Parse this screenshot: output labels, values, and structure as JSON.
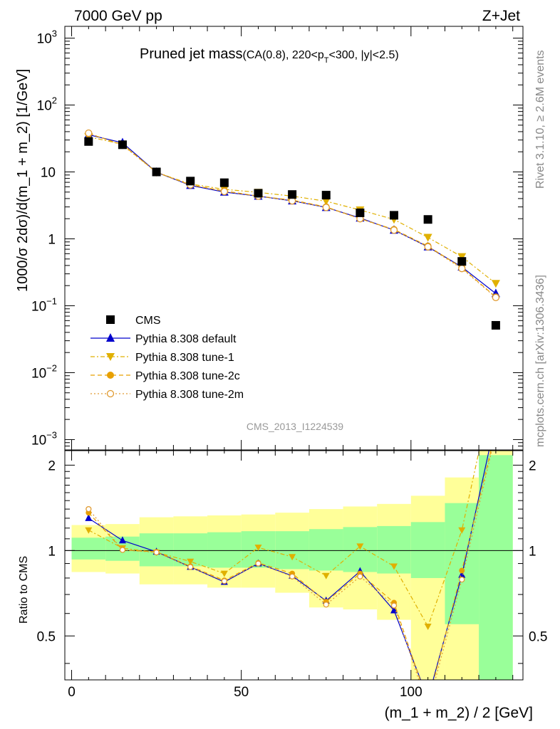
{
  "header": {
    "left": "7000 GeV pp",
    "right": "Z+Jet"
  },
  "side_labels": {
    "rivet": "Rivet 3.1.10, ≥ 2.6M events",
    "mcplots": "mcplots.cern.ch [arXiv:1306.3436]"
  },
  "chart_data": {
    "type": "scatter",
    "title_main": "Pruned jet mass",
    "title_detail": "(CA(0.8), 220<p",
    "title_detail_sub": "T",
    "title_detail_rest": "<300, |y|<2.5)",
    "analysis_id": "CMS_2013_I1224539",
    "xlabel": "(m_1 + m_2) / 2 [GeV]",
    "ylabel_main": "1000/σ 2dσ)/d(m_1 + m_2) [1/GeV]",
    "ylabel_ratio": "Ratio to CMS",
    "x_range": [
      -2,
      133
    ],
    "main_y_log": true,
    "main_y_range": [
      0.0007,
      1500
    ],
    "ratio_y_range": [
      0.35,
      2.25
    ],
    "x_ticks": [
      "0",
      "50",
      "100"
    ],
    "main_y_ticks": [
      {
        "mant": "10",
        "exp": "3"
      },
      {
        "mant": "10",
        "exp": "2"
      },
      {
        "mant": "10",
        "exp": ""
      },
      {
        "mant": "1",
        "exp": ""
      },
      {
        "mant": "10",
        "exp": "−1"
      },
      {
        "mant": "10",
        "exp": "−2"
      },
      {
        "mant": "10",
        "exp": "−3"
      }
    ],
    "ratio_y_ticks": [
      "2",
      "1",
      "0.5"
    ],
    "bins": [
      [
        0,
        10
      ],
      [
        10,
        20
      ],
      [
        20,
        30
      ],
      [
        30,
        40
      ],
      [
        40,
        50
      ],
      [
        50,
        60
      ],
      [
        60,
        70
      ],
      [
        70,
        80
      ],
      [
        80,
        90
      ],
      [
        90,
        100
      ],
      [
        100,
        110
      ],
      [
        110,
        120
      ],
      [
        120,
        130
      ]
    ],
    "x": [
      5,
      15,
      25,
      35,
      45,
      55,
      65,
      75,
      85,
      95,
      105,
      115,
      125
    ],
    "cms": [
      28.5,
      25.5,
      10.0,
      7.3,
      6.9,
      4.8,
      4.6,
      4.5,
      2.45,
      2.25,
      1.95,
      0.46,
      0.051
    ],
    "band_green": [
      [
        0.93,
        1.11
      ],
      [
        0.92,
        1.12
      ],
      [
        0.88,
        1.15
      ],
      [
        0.88,
        1.15
      ],
      [
        0.87,
        1.16
      ],
      [
        0.87,
        1.17
      ],
      [
        0.86,
        1.17
      ],
      [
        0.85,
        1.19
      ],
      [
        0.84,
        1.21
      ],
      [
        0.83,
        1.22
      ],
      [
        0.8,
        1.26
      ],
      [
        0.55,
        1.47
      ],
      [
        0.35,
        2.17
      ]
    ],
    "band_yellow": [
      [
        0.84,
        1.23
      ],
      [
        0.83,
        1.24
      ],
      [
        0.76,
        1.31
      ],
      [
        0.76,
        1.32
      ],
      [
        0.74,
        1.33
      ],
      [
        0.74,
        1.34
      ],
      [
        0.71,
        1.36
      ],
      [
        0.63,
        1.4
      ],
      [
        0.62,
        1.43
      ],
      [
        0.57,
        1.46
      ],
      [
        0.35,
        1.56
      ],
      [
        0.35,
        1.81
      ],
      [
        0.35,
        2.25
      ]
    ],
    "series": [
      {
        "name": "CMS",
        "color": "#000000",
        "marker": "square"
      },
      {
        "name": "Pythia 8.308 default",
        "color": "#0000cc",
        "marker": "triangle-up",
        "dash": "",
        "values": [
          36.0,
          27.3,
          9.9,
          6.3,
          5.0,
          4.35,
          3.7,
          2.95,
          2.05,
          1.35,
          0.76,
          0.38,
          0.152
        ],
        "ratio": [
          1.3,
          1.085,
          0.99,
          0.875,
          0.775,
          0.9,
          0.815,
          0.665,
          0.845,
          0.615,
          0.3,
          0.82,
          2.9
        ]
      },
      {
        "name": "Pythia 8.308 tune-1",
        "color": "#e0b000",
        "marker": "triangle-down",
        "dash": "6,3,2,3",
        "values": [
          33.5,
          26.0,
          9.85,
          6.6,
          5.5,
          4.95,
          4.35,
          3.65,
          2.7,
          1.95,
          1.05,
          0.54,
          0.215
        ],
        "ratio": [
          1.18,
          1.02,
          0.985,
          0.915,
          0.83,
          1.025,
          0.95,
          0.815,
          1.035,
          0.88,
          0.54,
          1.18,
          4.2
        ]
      },
      {
        "name": "Pythia 8.308 tune-2c",
        "color": "#e8a000",
        "marker": "circle",
        "dash": "6,4",
        "values": [
          37.5,
          25.5,
          9.9,
          6.4,
          5.2,
          4.35,
          3.8,
          3.0,
          2.0,
          1.38,
          0.78,
          0.37,
          0.135
        ],
        "ratio": [
          1.36,
          1.005,
          0.99,
          0.88,
          0.785,
          0.905,
          0.83,
          0.66,
          0.83,
          0.655,
          0.29,
          0.85,
          2.65
        ]
      },
      {
        "name": "Pythia 8.308 tune-2m",
        "color": "#e09a30",
        "marker": "circle-open",
        "dash": "2,3",
        "values": [
          38.0,
          25.0,
          9.9,
          6.4,
          5.1,
          4.35,
          3.7,
          2.95,
          2.0,
          1.35,
          0.76,
          0.36,
          0.133
        ],
        "ratio": [
          1.4,
          1.005,
          0.985,
          0.875,
          0.78,
          0.9,
          0.81,
          0.645,
          0.81,
          0.64,
          0.28,
          0.79,
          2.6
        ]
      }
    ]
  }
}
